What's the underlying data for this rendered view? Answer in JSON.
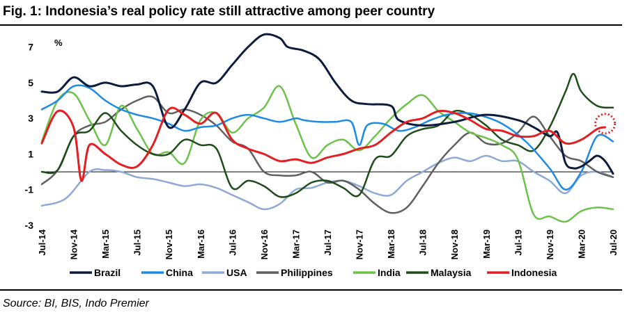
{
  "title": "Fig. 1:  Indonesia’s real policy rate still attractive among peer country",
  "source": "Source: BI, BIS, Indo Premier",
  "chart_data": {
    "type": "line",
    "ylabel": "%",
    "ylim": [
      -3,
      8
    ],
    "yticks": [
      7,
      5,
      3,
      1,
      -1,
      -3
    ],
    "x_start": "2014-07",
    "x_end": "2020-07",
    "xtick_labels": [
      "Jul-14",
      "Nov-14",
      "Mar-15",
      "Jul-15",
      "Nov-15",
      "Mar-16",
      "Jul-16",
      "Nov-16",
      "Mar-17",
      "Jul-17",
      "Nov-17",
      "Mar-18",
      "Jul-18",
      "Nov-18",
      "Mar-19",
      "Jul-19",
      "Nov-19",
      "Mar-20",
      "Jul-20"
    ],
    "legend_position": "bottom",
    "zero_line": true,
    "series": [
      {
        "name": "Brazil",
        "color": "#0d1b3d",
        "width": 3,
        "values": [
          [
            0,
            4.5
          ],
          [
            2,
            4.5
          ],
          [
            4,
            5.3
          ],
          [
            6,
            4.8
          ],
          [
            8,
            5.0
          ],
          [
            10,
            4.8
          ],
          [
            12,
            4.9
          ],
          [
            14,
            4.8
          ],
          [
            16,
            2.5
          ],
          [
            18,
            3.5
          ],
          [
            20,
            5.0
          ],
          [
            22,
            5.0
          ],
          [
            24,
            6.0
          ],
          [
            26,
            7.0
          ],
          [
            28,
            7.7
          ],
          [
            30,
            7.5
          ],
          [
            31,
            7.0
          ],
          [
            33,
            6.8
          ],
          [
            35,
            6.3
          ],
          [
            37,
            5.0
          ],
          [
            39,
            4.0
          ],
          [
            41,
            3.8
          ],
          [
            44,
            3.7
          ],
          [
            45,
            2.9
          ],
          [
            48,
            2.6
          ],
          [
            52,
            2.8
          ],
          [
            56,
            3.2
          ],
          [
            60,
            2.9
          ],
          [
            62,
            2.5
          ],
          [
            64,
            2.0
          ],
          [
            65,
            2.2
          ],
          [
            66,
            0.5
          ],
          [
            67,
            0.2
          ],
          [
            68,
            0.3
          ],
          [
            69,
            0.6
          ],
          [
            70,
            0.9
          ],
          [
            71,
            0.6
          ],
          [
            72,
            -0.1
          ]
        ]
      },
      {
        "name": "China",
        "color": "#1c8be4",
        "width": 2.5,
        "values": [
          [
            0,
            3.5
          ],
          [
            2,
            4.0
          ],
          [
            4,
            4.8
          ],
          [
            6,
            4.7
          ],
          [
            8,
            4.0
          ],
          [
            10,
            3.5
          ],
          [
            12,
            3.2
          ],
          [
            14,
            3.0
          ],
          [
            16,
            2.7
          ],
          [
            18,
            2.3
          ],
          [
            20,
            2.5
          ],
          [
            22,
            2.6
          ],
          [
            24,
            3.0
          ],
          [
            26,
            3.2
          ],
          [
            28,
            3.0
          ],
          [
            30,
            2.8
          ],
          [
            32,
            3.0
          ],
          [
            33,
            2.9
          ],
          [
            35,
            2.8
          ],
          [
            37,
            2.8
          ],
          [
            39,
            2.8
          ],
          [
            40,
            1.5
          ],
          [
            41,
            2.6
          ],
          [
            43,
            2.7
          ],
          [
            45,
            2.3
          ],
          [
            47,
            2.5
          ],
          [
            49,
            2.9
          ],
          [
            51,
            3.2
          ],
          [
            53,
            3.3
          ],
          [
            55,
            3.2
          ],
          [
            58,
            2.7
          ],
          [
            61,
            1.7
          ],
          [
            64,
            0.2
          ],
          [
            66,
            -1.0
          ],
          [
            68,
            0.0
          ],
          [
            70,
            2.0
          ],
          [
            72,
            1.7
          ]
        ]
      },
      {
        "name": "USA",
        "color": "#8ea9d6",
        "width": 2.5,
        "values": [
          [
            0,
            -1.9
          ],
          [
            3,
            -1.5
          ],
          [
            6,
            0.0
          ],
          [
            8,
            0.1
          ],
          [
            10,
            0.0
          ],
          [
            12,
            -0.3
          ],
          [
            14,
            -0.4
          ],
          [
            16,
            -0.6
          ],
          [
            18,
            -0.8
          ],
          [
            20,
            -0.7
          ],
          [
            22,
            -0.9
          ],
          [
            24,
            -1.3
          ],
          [
            26,
            -1.7
          ],
          [
            28,
            -2.1
          ],
          [
            30,
            -1.8
          ],
          [
            32,
            -1.0
          ],
          [
            34,
            -0.9
          ],
          [
            36,
            -0.6
          ],
          [
            38,
            -0.5
          ],
          [
            40,
            -0.8
          ],
          [
            42,
            -1.2
          ],
          [
            44,
            -1.3
          ],
          [
            46,
            -0.5
          ],
          [
            48,
            0.0
          ],
          [
            50,
            0.5
          ],
          [
            52,
            0.8
          ],
          [
            54,
            0.6
          ],
          [
            56,
            0.9
          ],
          [
            58,
            0.6
          ],
          [
            60,
            0.6
          ],
          [
            62,
            0.0
          ],
          [
            64,
            -0.5
          ],
          [
            66,
            -1.2
          ],
          [
            68,
            -0.2
          ],
          [
            70,
            0.0
          ],
          [
            72,
            -0.3
          ]
        ]
      },
      {
        "name": "Philippines",
        "color": "#5f5f5f",
        "width": 2.5,
        "values": [
          [
            0,
            -0.7
          ],
          [
            2,
            0.1
          ],
          [
            4,
            2.0
          ],
          [
            6,
            2.6
          ],
          [
            8,
            2.8
          ],
          [
            10,
            3.5
          ],
          [
            12,
            4.0
          ],
          [
            14,
            4.2
          ],
          [
            16,
            3.3
          ],
          [
            18,
            3.5
          ],
          [
            20,
            3.2
          ],
          [
            22,
            2.6
          ],
          [
            24,
            1.7
          ],
          [
            26,
            1.3
          ],
          [
            28,
            0.0
          ],
          [
            30,
            -0.2
          ],
          [
            32,
            -0.2
          ],
          [
            34,
            0.0
          ],
          [
            36,
            -0.6
          ],
          [
            38,
            -0.5
          ],
          [
            40,
            -1.0
          ],
          [
            42,
            -1.8
          ],
          [
            44,
            -2.3
          ],
          [
            46,
            -2.0
          ],
          [
            48,
            -0.8
          ],
          [
            50,
            0.5
          ],
          [
            52,
            1.5
          ],
          [
            54,
            2.2
          ],
          [
            56,
            1.6
          ],
          [
            58,
            1.6
          ],
          [
            60,
            2.2
          ],
          [
            62,
            3.1
          ],
          [
            64,
            2.0
          ],
          [
            66,
            0.9
          ],
          [
            68,
            0.6
          ],
          [
            70,
            0.0
          ],
          [
            72,
            -0.3
          ]
        ]
      },
      {
        "name": "India",
        "color": "#6cc24a",
        "width": 2.5,
        "values": [
          [
            0,
            1.7
          ],
          [
            2,
            4.0
          ],
          [
            4,
            4.4
          ],
          [
            6,
            2.9
          ],
          [
            8,
            1.5
          ],
          [
            10,
            3.7
          ],
          [
            12,
            2.4
          ],
          [
            14,
            1.0
          ],
          [
            16,
            1.1
          ],
          [
            18,
            0.5
          ],
          [
            20,
            2.9
          ],
          [
            22,
            3.3
          ],
          [
            24,
            2.2
          ],
          [
            26,
            3.0
          ],
          [
            28,
            3.6
          ],
          [
            30,
            4.8
          ],
          [
            32,
            2.7
          ],
          [
            34,
            0.8
          ],
          [
            36,
            1.5
          ],
          [
            38,
            1.8
          ],
          [
            40,
            1.2
          ],
          [
            42,
            2.0
          ],
          [
            44,
            3.0
          ],
          [
            46,
            3.8
          ],
          [
            48,
            4.3
          ],
          [
            50,
            3.4
          ],
          [
            52,
            2.8
          ],
          [
            54,
            2.2
          ],
          [
            56,
            1.9
          ],
          [
            58,
            1.5
          ],
          [
            60,
            0.7
          ],
          [
            62,
            -2.4
          ],
          [
            64,
            -2.5
          ],
          [
            66,
            -2.8
          ],
          [
            68,
            -2.2
          ],
          [
            70,
            -2.0
          ],
          [
            72,
            -2.1
          ]
        ]
      },
      {
        "name": "Malaysia",
        "color": "#1e4d1a",
        "width": 2.5,
        "values": [
          [
            0,
            0.0
          ],
          [
            2,
            0.1
          ],
          [
            4,
            2.0
          ],
          [
            6,
            2.3
          ],
          [
            8,
            3.3
          ],
          [
            10,
            2.3
          ],
          [
            12,
            1.5
          ],
          [
            14,
            1.0
          ],
          [
            16,
            1.0
          ],
          [
            18,
            1.8
          ],
          [
            20,
            1.5
          ],
          [
            22,
            1.3
          ],
          [
            24,
            -0.9
          ],
          [
            26,
            -0.5
          ],
          [
            28,
            -0.8
          ],
          [
            30,
            -1.4
          ],
          [
            32,
            -1.2
          ],
          [
            34,
            -0.6
          ],
          [
            36,
            -0.5
          ],
          [
            38,
            -0.9
          ],
          [
            40,
            -1.3
          ],
          [
            42,
            0.7
          ],
          [
            44,
            0.9
          ],
          [
            46,
            2.0
          ],
          [
            48,
            2.4
          ],
          [
            50,
            2.6
          ],
          [
            52,
            3.4
          ],
          [
            54,
            3.2
          ],
          [
            56,
            2.6
          ],
          [
            58,
            1.8
          ],
          [
            60,
            1.5
          ],
          [
            62,
            1.2
          ],
          [
            64,
            2.5
          ],
          [
            66,
            4.5
          ],
          [
            67,
            5.5
          ],
          [
            68,
            4.5
          ],
          [
            70,
            3.7
          ],
          [
            72,
            3.6
          ]
        ]
      },
      {
        "name": "Indonesia",
        "color": "#e21f23",
        "width": 3,
        "values": [
          [
            0,
            1.6
          ],
          [
            2,
            3.4
          ],
          [
            4,
            2.5
          ],
          [
            5,
            -0.5
          ],
          [
            6,
            1.5
          ],
          [
            8,
            1.0
          ],
          [
            10,
            0.4
          ],
          [
            12,
            0.3
          ],
          [
            14,
            1.5
          ],
          [
            16,
            3.5
          ],
          [
            18,
            3.2
          ],
          [
            20,
            2.7
          ],
          [
            22,
            3.3
          ],
          [
            24,
            1.8
          ],
          [
            26,
            1.3
          ],
          [
            28,
            1.0
          ],
          [
            30,
            0.6
          ],
          [
            32,
            0.7
          ],
          [
            34,
            0.5
          ],
          [
            36,
            0.8
          ],
          [
            38,
            1.0
          ],
          [
            40,
            1.3
          ],
          [
            42,
            1.5
          ],
          [
            44,
            2.2
          ],
          [
            46,
            2.8
          ],
          [
            48,
            3.0
          ],
          [
            50,
            3.4
          ],
          [
            52,
            3.3
          ],
          [
            54,
            2.9
          ],
          [
            56,
            2.4
          ],
          [
            58,
            2.3
          ],
          [
            60,
            2.0
          ],
          [
            62,
            2.0
          ],
          [
            64,
            2.3
          ],
          [
            66,
            1.6
          ],
          [
            68,
            1.8
          ],
          [
            70,
            2.4
          ],
          [
            71,
            2.5
          ]
        ]
      }
    ],
    "highlight": {
      "series": "Indonesia",
      "x": 71,
      "y": 2.7,
      "style": "dotted-circle"
    }
  }
}
